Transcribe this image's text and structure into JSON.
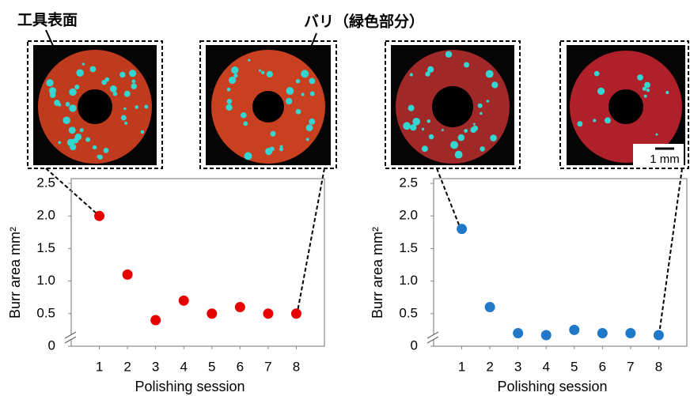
{
  "annotations": {
    "tool_surface": "工具表面",
    "burr": "バリ（緑色部分）",
    "scale_bar": "1 mm"
  },
  "chart_data": [
    {
      "type": "scatter",
      "x_label": "Polishing session",
      "y_label": "Burr area  mm²",
      "x": [
        1,
        2,
        3,
        4,
        5,
        6,
        7,
        8
      ],
      "values": [
        2.0,
        1.1,
        0.4,
        0.7,
        0.5,
        0.6,
        0.5,
        0.5
      ],
      "color": "#e60000",
      "xlim": [
        0,
        9
      ],
      "xticks": [
        1,
        2,
        3,
        4,
        5,
        6,
        7,
        8
      ],
      "ylim": [
        0,
        2.5
      ],
      "yticks": [
        0,
        0.5,
        {
          "value": 1,
          "label": "1.0"
        },
        1.5,
        {
          "value": 2,
          "label": "2.0"
        },
        2.5
      ]
    },
    {
      "type": "scatter",
      "x_label": "Polishing session",
      "y_label": "Burr area  mm²",
      "x": [
        1,
        2,
        3,
        4,
        5,
        6,
        7,
        8
      ],
      "values": [
        1.8,
        0.6,
        0.2,
        0.17,
        0.25,
        0.2,
        0.2,
        0.17
      ],
      "color": "#1f78c8",
      "xlim": [
        0,
        9
      ],
      "xticks": [
        1,
        2,
        3,
        4,
        5,
        6,
        7,
        8
      ],
      "ylim": [
        0,
        2.5
      ],
      "yticks": [
        0,
        0.5,
        {
          "value": 1,
          "label": "1.0"
        },
        1.5,
        {
          "value": 2,
          "label": "2.0"
        },
        2.5
      ]
    }
  ]
}
